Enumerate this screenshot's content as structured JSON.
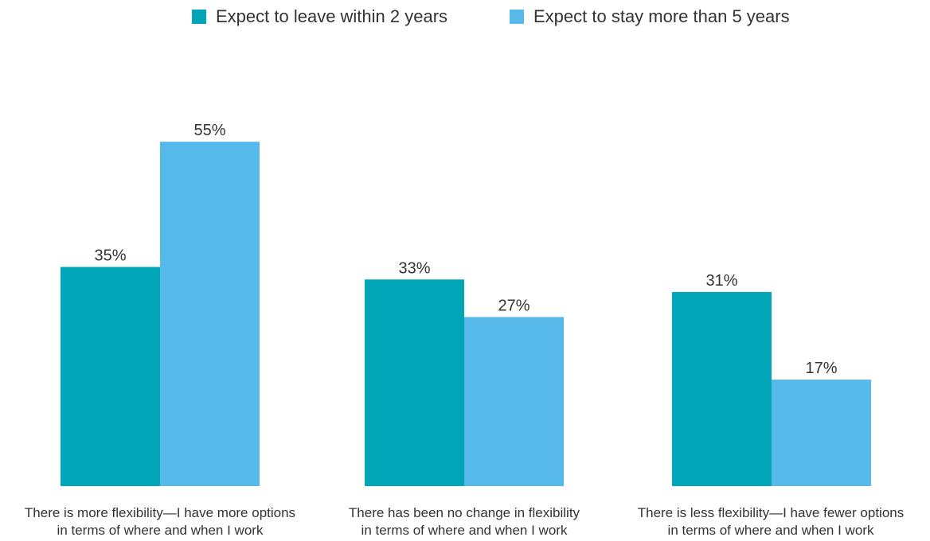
{
  "chart_data": {
    "type": "bar",
    "categories": [
      [
        "There is more flexibility—I have more options",
        "in terms of where and when I work"
      ],
      [
        "There has been no change in flexibility",
        "in terms of where and when I work"
      ],
      [
        "There is less flexibility—I have fewer options",
        "in terms of where and when I work"
      ]
    ],
    "series": [
      {
        "name": "Expect to leave within 2 years",
        "values": [
          35,
          33,
          31
        ],
        "color": "#00a5b8"
      },
      {
        "name": "Expect to stay more than 5 years",
        "values": [
          55,
          27,
          17
        ],
        "color": "#57b9e9"
      }
    ],
    "value_suffix": "%",
    "ylim": [
      0,
      55
    ],
    "grid": false,
    "legend": "top-center"
  }
}
